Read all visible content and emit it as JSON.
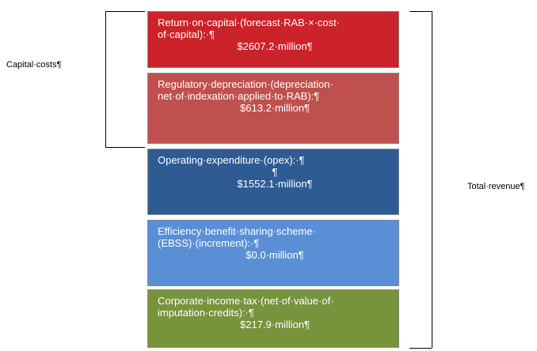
{
  "capital_costs_label": "Capital·costs¶",
  "total_revenue_label": "Total·revenue¶",
  "boxes": [
    {
      "left_lines": [
        "Return·on·capital·(forecast·RAB·×·cost·",
        "of·capital):·¶"
      ],
      "center_lines": [
        "$2607.2·million¶"
      ]
    },
    {
      "left_lines": [
        "Regulatory·depreciation·(depreciation·",
        "net·of·indexation·applied·to·RAB):¶"
      ],
      "center_lines": [
        "$613.2·million¶"
      ]
    },
    {
      "left_lines": [
        "Operating·expenditure·(opex):·¶"
      ],
      "center_lines": [
        "¶",
        "$1552.1·million¶"
      ]
    },
    {
      "left_lines": [
        "Efficiency·benefit·sharing·scheme·",
        "(EBSS)·(increment):·¶"
      ],
      "center_lines": [
        "$0.0·million¶"
      ]
    },
    {
      "left_lines": [
        "Corporate·income·tax·(net·of·value·of·",
        "imputation·credits):·¶"
      ],
      "center_lines": [
        "$217.9·million¶"
      ]
    }
  ]
}
